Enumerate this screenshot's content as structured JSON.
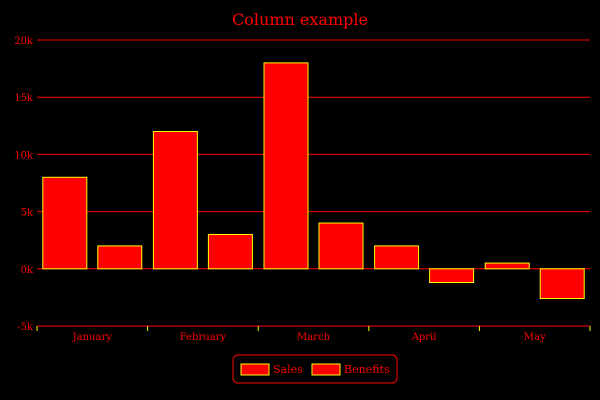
{
  "chart_data": {
    "type": "bar",
    "title": "Column example",
    "categories": [
      "January",
      "February",
      "March",
      "April",
      "May"
    ],
    "series": [
      {
        "name": "Sales",
        "values": [
          8000,
          12000,
          18000,
          2000,
          500
        ]
      },
      {
        "name": "Benefits",
        "values": [
          2000,
          3000,
          4000,
          -1200,
          -2600
        ]
      }
    ],
    "ylim": [
      -5000,
      20000
    ],
    "yticks": [
      {
        "value": -5000,
        "label": "-5k"
      },
      {
        "value": 0,
        "label": "0k"
      },
      {
        "value": 5000,
        "label": "5k"
      },
      {
        "value": 10000,
        "label": "10k"
      },
      {
        "value": 15000,
        "label": "15k"
      },
      {
        "value": 20000,
        "label": "20k"
      }
    ],
    "grid": true,
    "legend": "bottom",
    "colors": {
      "bar_fill": "#ff0000",
      "bar_stroke": "#ffff00",
      "text": "#ff0000",
      "grid": "#ff0000",
      "background": "#000000"
    }
  }
}
